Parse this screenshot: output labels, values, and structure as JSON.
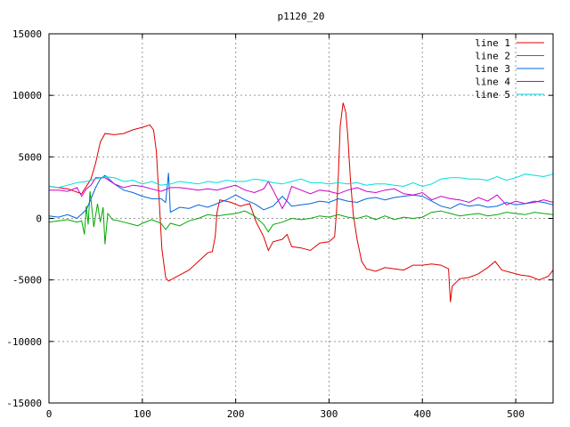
{
  "chart_data": {
    "type": "line",
    "title": "p1120_20",
    "xlabel": "",
    "ylabel": "",
    "xlim": [
      0,
      540
    ],
    "ylim": [
      -15000,
      15000
    ],
    "x_ticks": [
      0,
      100,
      200,
      300,
      400,
      500
    ],
    "y_ticks": [
      -15000,
      -10000,
      -5000,
      0,
      5000,
      10000,
      15000
    ],
    "grid": true,
    "legend_position": "top-right",
    "series": [
      {
        "name": "line 1",
        "color": "#dd0000",
        "points": [
          [
            0,
            2600
          ],
          [
            20,
            2400
          ],
          [
            35,
            2000
          ],
          [
            45,
            3200
          ],
          [
            50,
            4500
          ],
          [
            55,
            6200
          ],
          [
            60,
            6900
          ],
          [
            70,
            6800
          ],
          [
            80,
            6900
          ],
          [
            90,
            7200
          ],
          [
            100,
            7400
          ],
          [
            108,
            7600
          ],
          [
            112,
            7200
          ],
          [
            115,
            5500
          ],
          [
            118,
            1500
          ],
          [
            121,
            -2500
          ],
          [
            125,
            -4800
          ],
          [
            128,
            -5100
          ],
          [
            135,
            -4800
          ],
          [
            150,
            -4200
          ],
          [
            160,
            -3500
          ],
          [
            170,
            -2800
          ],
          [
            175,
            -2700
          ],
          [
            178,
            -1500
          ],
          [
            180,
            500
          ],
          [
            183,
            1500
          ],
          [
            195,
            1300
          ],
          [
            205,
            1000
          ],
          [
            215,
            1200
          ],
          [
            222,
            -300
          ],
          [
            230,
            -1500
          ],
          [
            235,
            -2600
          ],
          [
            240,
            -1900
          ],
          [
            250,
            -1700
          ],
          [
            255,
            -1300
          ],
          [
            260,
            -2300
          ],
          [
            270,
            -2400
          ],
          [
            280,
            -2600
          ],
          [
            290,
            -2000
          ],
          [
            300,
            -1900
          ],
          [
            306,
            -1500
          ],
          [
            308,
            500
          ],
          [
            310,
            3500
          ],
          [
            312,
            7500
          ],
          [
            315,
            9400
          ],
          [
            318,
            8600
          ],
          [
            320,
            6800
          ],
          [
            323,
            3000
          ],
          [
            326,
            300
          ],
          [
            330,
            -1700
          ],
          [
            335,
            -3500
          ],
          [
            340,
            -4100
          ],
          [
            350,
            -4300
          ],
          [
            360,
            -4000
          ],
          [
            370,
            -4100
          ],
          [
            380,
            -4200
          ],
          [
            390,
            -3800
          ],
          [
            400,
            -3800
          ],
          [
            410,
            -3700
          ],
          [
            420,
            -3800
          ],
          [
            428,
            -4100
          ],
          [
            430,
            -6800
          ],
          [
            432,
            -5500
          ],
          [
            440,
            -4900
          ],
          [
            450,
            -4800
          ],
          [
            460,
            -4500
          ],
          [
            470,
            -4000
          ],
          [
            478,
            -3500
          ],
          [
            485,
            -4200
          ],
          [
            495,
            -4400
          ],
          [
            505,
            -4600
          ],
          [
            515,
            -4700
          ],
          [
            525,
            -5000
          ],
          [
            535,
            -4700
          ],
          [
            540,
            -4200
          ]
        ]
      },
      {
        "name": "line 2",
        "color": "#00aa00",
        "points": [
          [
            0,
            -300
          ],
          [
            10,
            -200
          ],
          [
            20,
            -100
          ],
          [
            30,
            -300
          ],
          [
            35,
            -200
          ],
          [
            38,
            -1300
          ],
          [
            40,
            1000
          ],
          [
            42,
            -500
          ],
          [
            44,
            2200
          ],
          [
            46,
            800
          ],
          [
            48,
            -700
          ],
          [
            52,
            1200
          ],
          [
            55,
            -300
          ],
          [
            58,
            900
          ],
          [
            60,
            -2100
          ],
          [
            63,
            400
          ],
          [
            68,
            -100
          ],
          [
            75,
            -200
          ],
          [
            80,
            -300
          ],
          [
            90,
            -500
          ],
          [
            95,
            -600
          ],
          [
            100,
            -400
          ],
          [
            110,
            -100
          ],
          [
            120,
            -400
          ],
          [
            125,
            -900
          ],
          [
            130,
            -400
          ],
          [
            140,
            -600
          ],
          [
            150,
            -200
          ],
          [
            160,
            0
          ],
          [
            170,
            300
          ],
          [
            180,
            200
          ],
          [
            190,
            300
          ],
          [
            200,
            400
          ],
          [
            210,
            600
          ],
          [
            220,
            200
          ],
          [
            230,
            -500
          ],
          [
            235,
            -1100
          ],
          [
            240,
            -500
          ],
          [
            250,
            -300
          ],
          [
            260,
            0
          ],
          [
            270,
            -100
          ],
          [
            280,
            0
          ],
          [
            290,
            200
          ],
          [
            300,
            100
          ],
          [
            310,
            300
          ],
          [
            320,
            100
          ],
          [
            330,
            0
          ],
          [
            340,
            200
          ],
          [
            350,
            -100
          ],
          [
            360,
            200
          ],
          [
            370,
            -100
          ],
          [
            380,
            100
          ],
          [
            390,
            0
          ],
          [
            400,
            100
          ],
          [
            410,
            500
          ],
          [
            420,
            600
          ],
          [
            430,
            400
          ],
          [
            440,
            200
          ],
          [
            450,
            300
          ],
          [
            460,
            400
          ],
          [
            470,
            200
          ],
          [
            480,
            300
          ],
          [
            490,
            500
          ],
          [
            500,
            400
          ],
          [
            510,
            300
          ],
          [
            520,
            500
          ],
          [
            530,
            400
          ],
          [
            540,
            300
          ]
        ]
      },
      {
        "name": "line 3",
        "color": "#0066dd",
        "points": [
          [
            0,
            200
          ],
          [
            10,
            100
          ],
          [
            20,
            300
          ],
          [
            30,
            0
          ],
          [
            40,
            700
          ],
          [
            50,
            2500
          ],
          [
            55,
            3200
          ],
          [
            60,
            3500
          ],
          [
            70,
            2800
          ],
          [
            80,
            2300
          ],
          [
            90,
            2100
          ],
          [
            100,
            1800
          ],
          [
            110,
            1600
          ],
          [
            120,
            1600
          ],
          [
            125,
            1300
          ],
          [
            128,
            3700
          ],
          [
            130,
            500
          ],
          [
            140,
            900
          ],
          [
            150,
            800
          ],
          [
            160,
            1100
          ],
          [
            170,
            900
          ],
          [
            180,
            1200
          ],
          [
            190,
            1500
          ],
          [
            200,
            1900
          ],
          [
            210,
            1500
          ],
          [
            220,
            1200
          ],
          [
            230,
            700
          ],
          [
            240,
            1000
          ],
          [
            250,
            1800
          ],
          [
            260,
            1000
          ],
          [
            270,
            1100
          ],
          [
            280,
            1200
          ],
          [
            290,
            1400
          ],
          [
            300,
            1300
          ],
          [
            310,
            1600
          ],
          [
            320,
            1400
          ],
          [
            330,
            1300
          ],
          [
            340,
            1600
          ],
          [
            350,
            1700
          ],
          [
            360,
            1500
          ],
          [
            370,
            1700
          ],
          [
            380,
            1800
          ],
          [
            390,
            1900
          ],
          [
            400,
            1800
          ],
          [
            410,
            1400
          ],
          [
            420,
            1000
          ],
          [
            430,
            800
          ],
          [
            440,
            1200
          ],
          [
            450,
            1000
          ],
          [
            460,
            1100
          ],
          [
            470,
            900
          ],
          [
            480,
            1000
          ],
          [
            490,
            1300
          ],
          [
            500,
            1100
          ],
          [
            510,
            1200
          ],
          [
            520,
            1400
          ],
          [
            530,
            1300
          ],
          [
            540,
            1100
          ]
        ]
      },
      {
        "name": "line 4",
        "color": "#cc00cc",
        "points": [
          [
            0,
            2300
          ],
          [
            10,
            2300
          ],
          [
            20,
            2200
          ],
          [
            30,
            2500
          ],
          [
            35,
            1800
          ],
          [
            40,
            2400
          ],
          [
            45,
            2700
          ],
          [
            50,
            3300
          ],
          [
            60,
            3300
          ],
          [
            70,
            2800
          ],
          [
            80,
            2500
          ],
          [
            90,
            2700
          ],
          [
            100,
            2600
          ],
          [
            110,
            2400
          ],
          [
            120,
            2200
          ],
          [
            130,
            2500
          ],
          [
            140,
            2500
          ],
          [
            150,
            2400
          ],
          [
            160,
            2300
          ],
          [
            170,
            2400
          ],
          [
            180,
            2300
          ],
          [
            190,
            2500
          ],
          [
            200,
            2700
          ],
          [
            210,
            2300
          ],
          [
            220,
            2100
          ],
          [
            230,
            2400
          ],
          [
            235,
            3000
          ],
          [
            240,
            2300
          ],
          [
            250,
            800
          ],
          [
            255,
            1500
          ],
          [
            260,
            2600
          ],
          [
            270,
            2300
          ],
          [
            280,
            2000
          ],
          [
            290,
            2300
          ],
          [
            300,
            2200
          ],
          [
            310,
            2000
          ],
          [
            320,
            2300
          ],
          [
            330,
            2500
          ],
          [
            340,
            2200
          ],
          [
            350,
            2100
          ],
          [
            360,
            2300
          ],
          [
            370,
            2400
          ],
          [
            380,
            2000
          ],
          [
            390,
            1900
          ],
          [
            400,
            2100
          ],
          [
            410,
            1500
          ],
          [
            420,
            1800
          ],
          [
            430,
            1600
          ],
          [
            440,
            1500
          ],
          [
            450,
            1300
          ],
          [
            460,
            1700
          ],
          [
            470,
            1400
          ],
          [
            480,
            1900
          ],
          [
            490,
            1100
          ],
          [
            500,
            1400
          ],
          [
            510,
            1200
          ],
          [
            520,
            1300
          ],
          [
            530,
            1500
          ],
          [
            540,
            1300
          ]
        ]
      },
      {
        "name": "line 5",
        "color": "#00dddd",
        "points": [
          [
            0,
            2600
          ],
          [
            10,
            2500
          ],
          [
            20,
            2700
          ],
          [
            30,
            2900
          ],
          [
            40,
            3000
          ],
          [
            50,
            3200
          ],
          [
            60,
            3400
          ],
          [
            70,
            3300
          ],
          [
            80,
            3000
          ],
          [
            90,
            3100
          ],
          [
            100,
            2800
          ],
          [
            110,
            3000
          ],
          [
            120,
            2700
          ],
          [
            130,
            2800
          ],
          [
            140,
            3000
          ],
          [
            150,
            2900
          ],
          [
            160,
            2800
          ],
          [
            170,
            3000
          ],
          [
            180,
            2900
          ],
          [
            190,
            3100
          ],
          [
            200,
            3000
          ],
          [
            210,
            3000
          ],
          [
            220,
            3200
          ],
          [
            230,
            3100
          ],
          [
            240,
            2900
          ],
          [
            250,
            2800
          ],
          [
            260,
            3000
          ],
          [
            270,
            3200
          ],
          [
            280,
            2900
          ],
          [
            290,
            2900
          ],
          [
            300,
            2800
          ],
          [
            310,
            2900
          ],
          [
            320,
            2800
          ],
          [
            330,
            2900
          ],
          [
            340,
            2700
          ],
          [
            350,
            2800
          ],
          [
            360,
            2800
          ],
          [
            370,
            2700
          ],
          [
            380,
            2600
          ],
          [
            390,
            2900
          ],
          [
            400,
            2600
          ],
          [
            410,
            2800
          ],
          [
            420,
            3200
          ],
          [
            430,
            3300
          ],
          [
            440,
            3300
          ],
          [
            450,
            3200
          ],
          [
            460,
            3200
          ],
          [
            470,
            3100
          ],
          [
            480,
            3400
          ],
          [
            490,
            3100
          ],
          [
            500,
            3300
          ],
          [
            510,
            3600
          ],
          [
            520,
            3500
          ],
          [
            530,
            3400
          ],
          [
            540,
            3600
          ]
        ]
      }
    ]
  }
}
